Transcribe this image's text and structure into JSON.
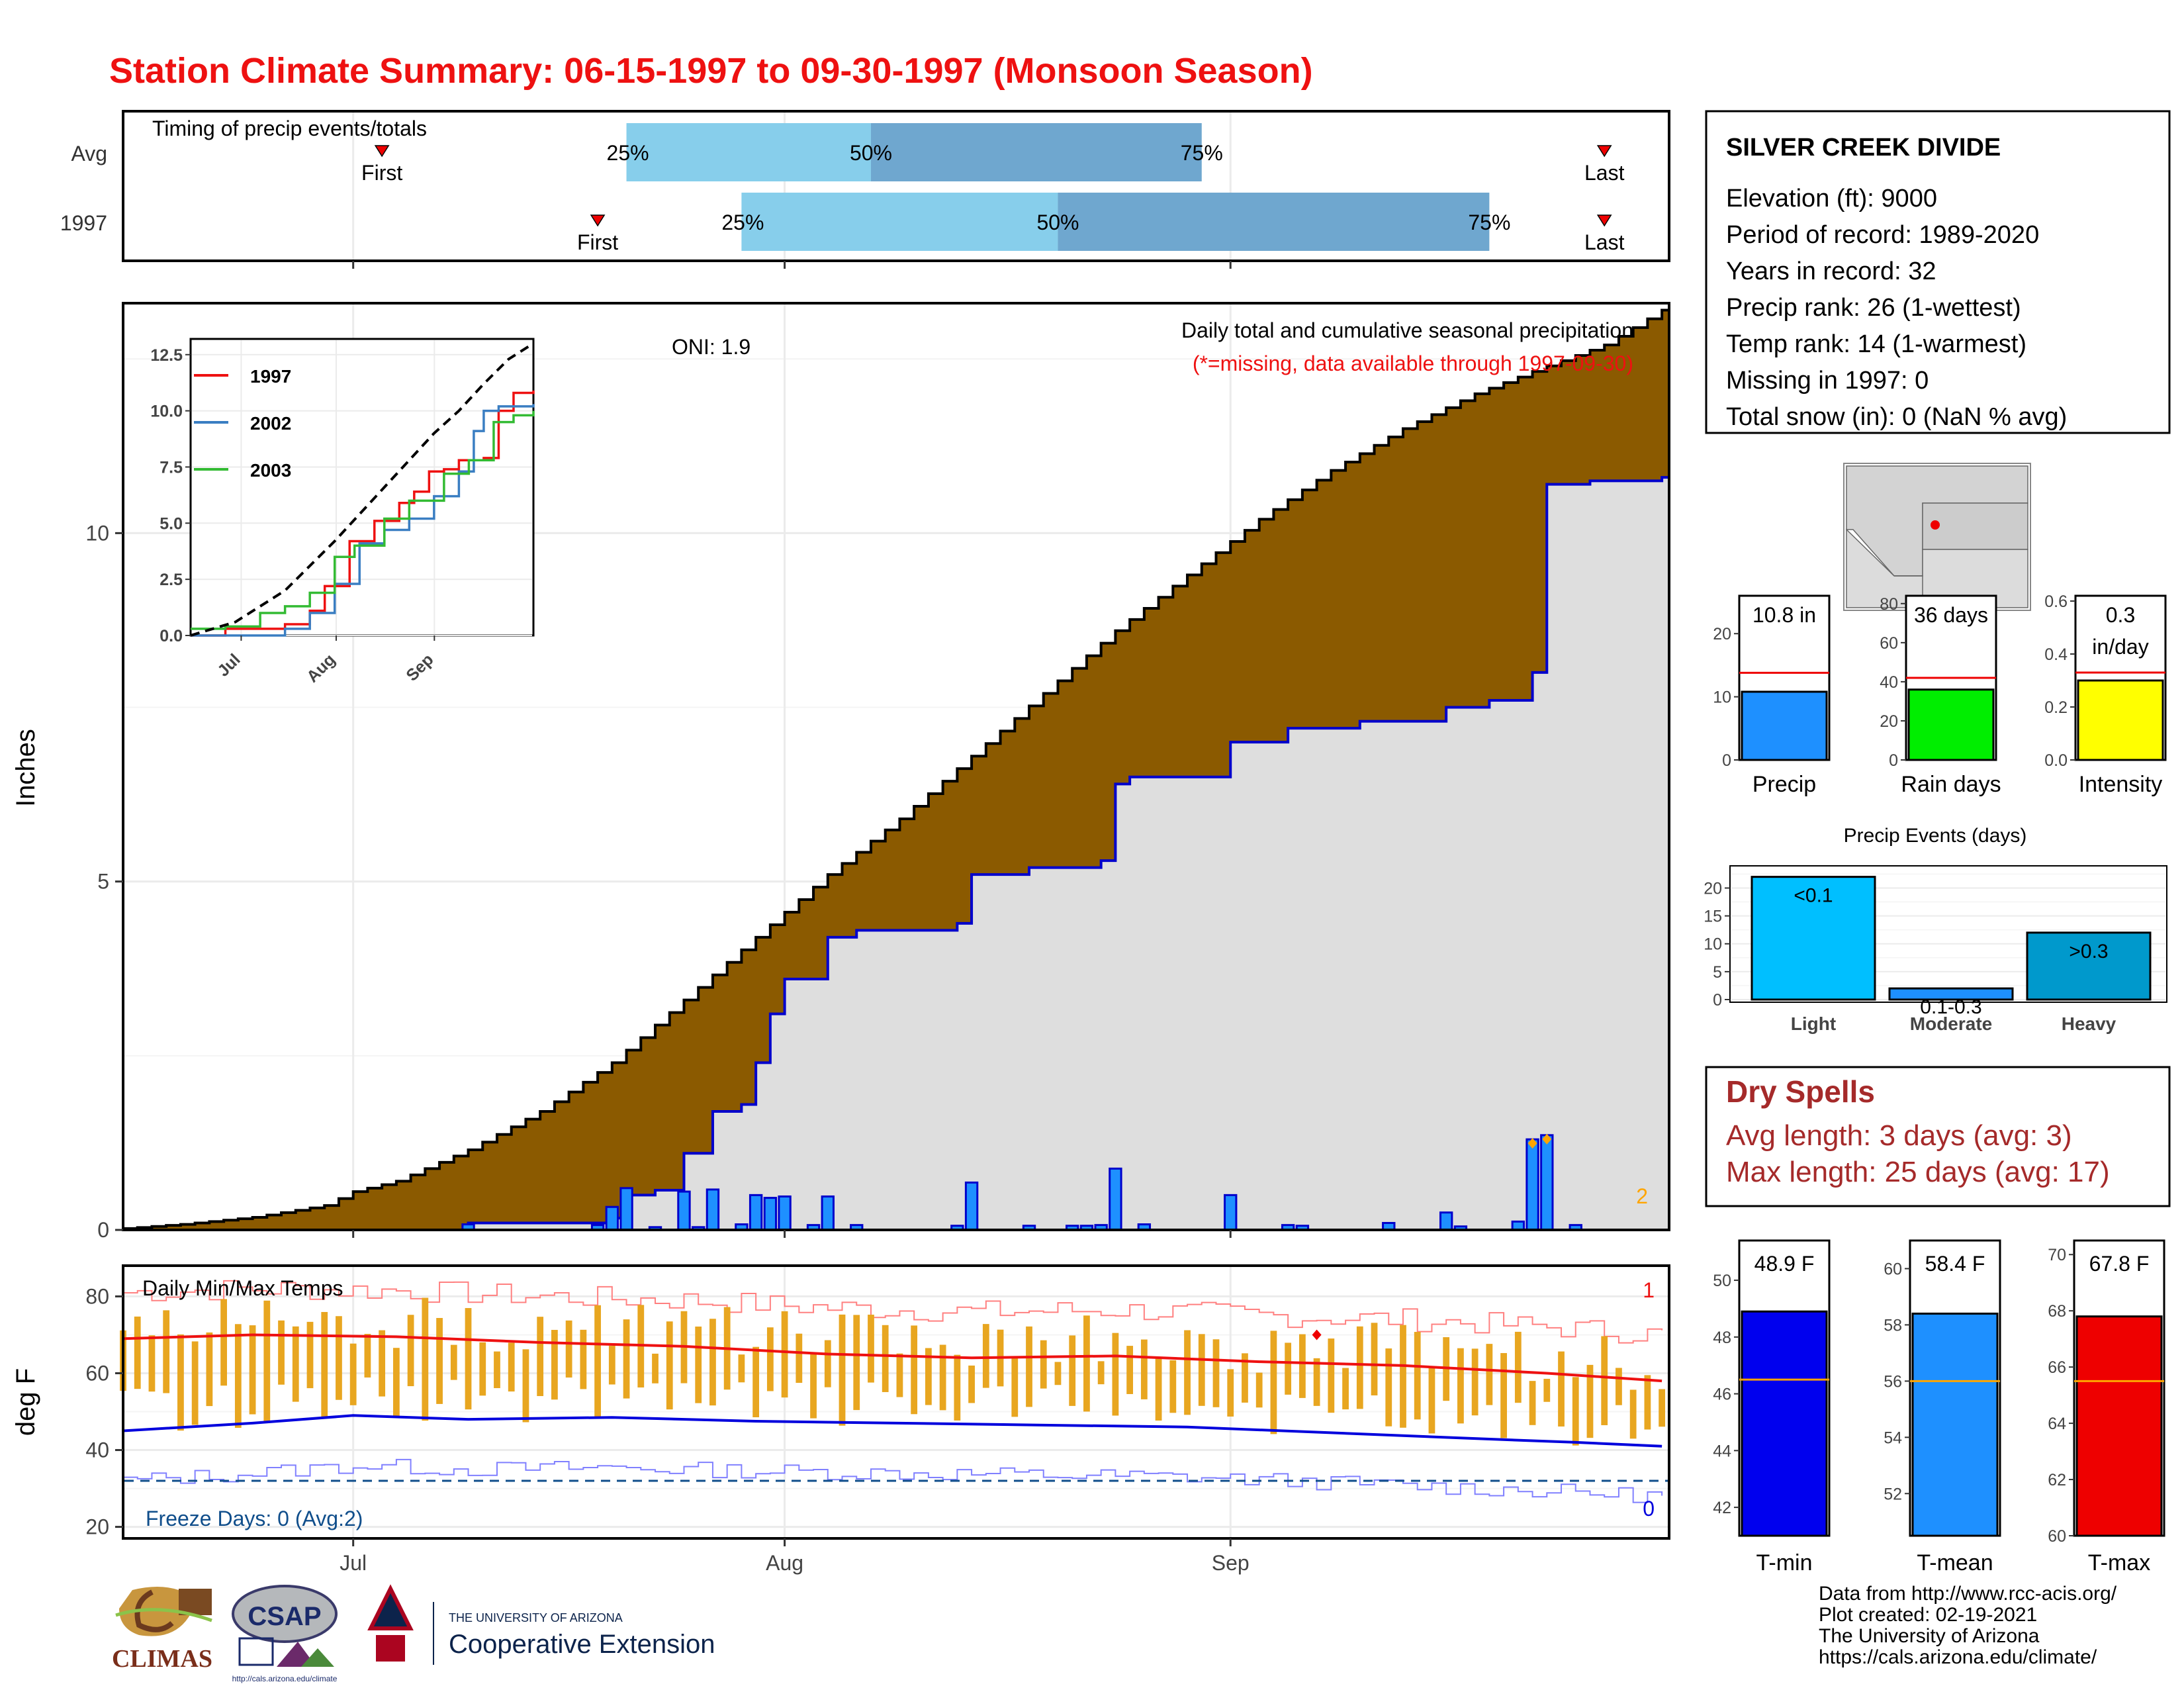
{
  "title": "Station Climate Summary: 06-15-1997 to 09-30-1997 (Monsoon Season)",
  "colors": {
    "title": "#ee1111",
    "cumulative_1997": "#8b5a00",
    "cumulative_avg_fill": "#dedede",
    "precip_bar": "#1e90ff",
    "precip_outline": "#0000cc",
    "temp_bar": "#e8a620",
    "avg_max": "#ee1111",
    "avg_min": "#0000dd",
    "timing_light": "#87ceeb",
    "timing_dark": "#6fa7cf",
    "dry_spell": "#a52a2a",
    "freeze_line": "#104e8b",
    "events_light": "#00bfff",
    "events_moderate": "#1e90ff",
    "events_heavy": "#0099cc",
    "rain_days_bar": "#00ee00",
    "intensity_bar": "#ffff00",
    "tmin_bar": "#0000ee",
    "tmean_bar": "#1e90ff",
    "tmax_bar": "#ee0000"
  },
  "timing": {
    "label": "Timing of precip events/totals",
    "rows": [
      {
        "name": "Avg",
        "first": "First",
        "last": "Last",
        "first_day": 19,
        "last_day": 104,
        "p25": 36,
        "p50": 53,
        "p75": 76,
        "p25_label": "25%",
        "p50_label": "50%",
        "p75_label": "75%"
      },
      {
        "name": "1997",
        "first": "First",
        "last": "Last",
        "first_day": 34,
        "last_day": 104,
        "p25": 44,
        "p50": 66,
        "p75": 96,
        "p25_label": "25%",
        "p50_label": "50%",
        "p75_label": "75%"
      }
    ]
  },
  "main": {
    "ylabel": "Inches",
    "oni": "ONI: 1.9",
    "subtitle": "Daily total and cumulative seasonal precipitation",
    "missing_note": "(*=missing, data available through 1997-09-30)",
    "missing_count": "2",
    "yticks": [
      "0",
      "5",
      "10"
    ],
    "xticks": [
      "Jul",
      "Aug",
      "Sep"
    ]
  },
  "chart_data": [
    {
      "type": "area",
      "name": "cumulative_precip",
      "x_unit": "day of season (1 = Jun 15)",
      "ylim": [
        0,
        13.3
      ],
      "avg_cumulative": [
        [
          1,
          0.02
        ],
        [
          5,
          0.08
        ],
        [
          10,
          0.18
        ],
        [
          15,
          0.35
        ],
        [
          17,
          0.55
        ],
        [
          20,
          0.7
        ],
        [
          25,
          1.15
        ],
        [
          30,
          1.7
        ],
        [
          35,
          2.4
        ],
        [
          40,
          3.3
        ],
        [
          45,
          4.2
        ],
        [
          50,
          5.1
        ],
        [
          55,
          5.9
        ],
        [
          60,
          6.8
        ],
        [
          65,
          7.7
        ],
        [
          70,
          8.6
        ],
        [
          75,
          9.4
        ],
        [
          80,
          10.2
        ],
        [
          85,
          10.9
        ],
        [
          90,
          11.5
        ],
        [
          95,
          12.0
        ],
        [
          100,
          12.4
        ],
        [
          104,
          12.7
        ],
        [
          108,
          13.2
        ]
      ],
      "obs_cumulative_1997": [
        [
          1,
          0
        ],
        [
          25,
          0.1
        ],
        [
          34,
          0.1
        ],
        [
          35,
          0.17
        ],
        [
          36,
          0.5
        ],
        [
          38,
          0.57
        ],
        [
          40,
          1.1
        ],
        [
          41,
          1.1
        ],
        [
          42,
          1.7
        ],
        [
          44,
          1.8
        ],
        [
          45,
          2.4
        ],
        [
          46,
          3.1
        ],
        [
          47,
          3.6
        ],
        [
          49,
          3.6
        ],
        [
          50,
          4.2
        ],
        [
          52,
          4.3
        ],
        [
          59,
          4.4
        ],
        [
          60,
          5.1
        ],
        [
          63,
          5.1
        ],
        [
          64,
          5.2
        ],
        [
          69,
          5.3
        ],
        [
          70,
          6.4
        ],
        [
          71,
          6.5
        ],
        [
          77,
          6.5
        ],
        [
          78,
          7.0
        ],
        [
          82,
          7.2
        ],
        [
          87,
          7.3
        ],
        [
          92,
          7.3
        ],
        [
          93,
          7.5
        ],
        [
          96,
          7.6
        ],
        [
          98,
          7.6
        ],
        [
          99,
          8.0
        ],
        [
          100,
          10.7
        ],
        [
          103,
          10.75
        ],
        [
          108,
          10.8
        ]
      ],
      "daily_precip_1997": [
        [
          25,
          0.08
        ],
        [
          34,
          0.07
        ],
        [
          35,
          0.33
        ],
        [
          36,
          0.6
        ],
        [
          38,
          0.04
        ],
        [
          40,
          0.55
        ],
        [
          41,
          0.04
        ],
        [
          42,
          0.58
        ],
        [
          44,
          0.08
        ],
        [
          45,
          0.5
        ],
        [
          46,
          0.46
        ],
        [
          47,
          0.48
        ],
        [
          49,
          0.07
        ],
        [
          50,
          0.48
        ],
        [
          52,
          0.07
        ],
        [
          59,
          0.06
        ],
        [
          60,
          0.68
        ],
        [
          64,
          0.06
        ],
        [
          67,
          0.06
        ],
        [
          68,
          0.06
        ],
        [
          69,
          0.07
        ],
        [
          70,
          0.88
        ],
        [
          72,
          0.08
        ],
        [
          78,
          0.5
        ],
        [
          82,
          0.07
        ],
        [
          83,
          0.06
        ],
        [
          89,
          0.1
        ],
        [
          93,
          0.25
        ],
        [
          94,
          0.05
        ],
        [
          98,
          0.12
        ],
        [
          99,
          1.3
        ],
        [
          100,
          1.36
        ],
        [
          102,
          0.07
        ]
      ],
      "inset": {
        "yticks": [
          "0.0",
          "2.5",
          "5.0",
          "7.5",
          "10.0",
          "12.5"
        ],
        "xticks": [
          "Jul",
          "Aug",
          "Sep"
        ],
        "legend": [
          "1997",
          "2002",
          "2003"
        ],
        "series": [
          {
            "name": "1997",
            "color": "#ee1111",
            "points": [
              [
                1,
                0
              ],
              [
                8,
                0.3
              ],
              [
                15,
                0.3
              ],
              [
                20,
                0.5
              ],
              [
                25,
                1.1
              ],
              [
                28,
                2.2
              ],
              [
                33,
                4.2
              ],
              [
                38,
                5.1
              ],
              [
                43,
                5.9
              ],
              [
                46,
                6.4
              ],
              [
                49,
                7.3
              ],
              [
                52,
                7.4
              ],
              [
                55,
                7.8
              ],
              [
                60,
                7.9
              ],
              [
                63,
                10.0
              ],
              [
                66,
                10.8
              ],
              [
                70,
                10.9
              ]
            ]
          },
          {
            "name": "2002",
            "color": "#3a7ec2",
            "points": [
              [
                1,
                0
              ],
              [
                10,
                0
              ],
              [
                20,
                0.3
              ],
              [
                25,
                1.0
              ],
              [
                30,
                2.3
              ],
              [
                35,
                4.1
              ],
              [
                40,
                4.7
              ],
              [
                45,
                5.2
              ],
              [
                50,
                6.2
              ],
              [
                55,
                7.3
              ],
              [
                58,
                9.1
              ],
              [
                60,
                10.0
              ],
              [
                63,
                10.2
              ],
              [
                70,
                10.3
              ]
            ]
          },
          {
            "name": "2003",
            "color": "#33bb33",
            "points": [
              [
                1,
                0.3
              ],
              [
                8,
                0.4
              ],
              [
                15,
                1.0
              ],
              [
                20,
                1.3
              ],
              [
                25,
                1.9
              ],
              [
                30,
                3.5
              ],
              [
                34,
                4.0
              ],
              [
                40,
                5.2
              ],
              [
                45,
                6.0
              ],
              [
                52,
                7.2
              ],
              [
                57,
                7.8
              ],
              [
                62,
                9.5
              ],
              [
                66,
                9.8
              ],
              [
                70,
                10.0
              ]
            ]
          },
          {
            "name": "avg",
            "color": "#000000",
            "dashed": true,
            "points": [
              [
                1,
                0
              ],
              [
                10,
                0.6
              ],
              [
                20,
                2.0
              ],
              [
                30,
                4.2
              ],
              [
                40,
                6.6
              ],
              [
                50,
                9.0
              ],
              [
                55,
                10.0
              ],
              [
                60,
                11.2
              ],
              [
                65,
                12.3
              ],
              [
                70,
                13.0
              ]
            ]
          }
        ]
      }
    },
    {
      "type": "line",
      "name": "daily_temperatures",
      "ylabel": "deg F",
      "yticks": [
        "20",
        "40",
        "60",
        "80"
      ],
      "ylim": [
        17,
        88
      ],
      "label": "Daily Min/Max Temps",
      "freeze_label": "Freeze Days: 0 (Avg:2)",
      "max_missing": "1",
      "min_missing": "0",
      "freeze_temp": 32,
      "avg_max": [
        [
          1,
          69
        ],
        [
          10,
          70
        ],
        [
          20,
          69.5
        ],
        [
          30,
          68
        ],
        [
          40,
          67
        ],
        [
          50,
          65
        ],
        [
          60,
          64
        ],
        [
          70,
          64.5
        ],
        [
          80,
          63
        ],
        [
          90,
          62
        ],
        [
          100,
          60
        ],
        [
          108,
          58
        ]
      ],
      "avg_min": [
        [
          1,
          45
        ],
        [
          10,
          47
        ],
        [
          17,
          49
        ],
        [
          25,
          48
        ],
        [
          35,
          48.5
        ],
        [
          45,
          47.5
        ],
        [
          55,
          47
        ],
        [
          65,
          46.5
        ],
        [
          75,
          46
        ],
        [
          85,
          44.5
        ],
        [
          95,
          43
        ],
        [
          102,
          42
        ],
        [
          108,
          41
        ]
      ]
    }
  ],
  "station": {
    "name": "SILVER CREEK DIVIDE",
    "lines": [
      "Elevation (ft): 9000",
      "Period of record: 1989-2020",
      "Years in record: 32",
      "Precip rank: 26 (1-wettest)",
      "Temp rank: 14 (1-warmest)",
      "Missing in 1997: 0",
      "Total snow (in): 0 (NaN % avg)"
    ]
  },
  "summary_bars": [
    {
      "label": "Precip",
      "value_label": "10.8 in",
      "value": 10.8,
      "avg": 13.8,
      "ymax": 26,
      "yticks": [
        "0",
        "10",
        "20"
      ],
      "tick_vals": [
        0,
        10,
        20
      ],
      "color": "#1e90ff"
    },
    {
      "label": "Rain days",
      "value_label": "36 days",
      "value": 36,
      "avg": 42,
      "ymax": 84,
      "yticks": [
        "0",
        "20",
        "40",
        "60",
        "80"
      ],
      "tick_vals": [
        0,
        20,
        40,
        60,
        80
      ],
      "color": "#00ee00"
    },
    {
      "label": "Intensity",
      "value_label": "0.3",
      "value_label2": "in/day",
      "value": 0.3,
      "avg": 0.33,
      "ymax": 0.62,
      "yticks": [
        "0.0",
        "0.2",
        "0.4",
        "0.6"
      ],
      "tick_vals": [
        0,
        0.2,
        0.4,
        0.6
      ],
      "color": "#ffff00"
    }
  ],
  "events": {
    "title": "Precip Events (days)",
    "yticks": [
      "0",
      "5",
      "10",
      "15",
      "20"
    ],
    "bars": [
      {
        "label": "Light",
        "value": 22,
        "value_label": "<0.1",
        "color": "#00bfff"
      },
      {
        "label": "Moderate",
        "value": 2,
        "value_label": "0.1-0.3",
        "color": "#1e90ff"
      },
      {
        "label": "Heavy",
        "value": 12,
        "value_label": ">0.3",
        "color": "#0099cc"
      }
    ]
  },
  "dry_spells": {
    "title": "Dry Spells",
    "avg_line": "Avg length: 3 days (avg: 3)",
    "max_line": "Max length: 25 days (avg: 17)"
  },
  "temp_bars": [
    {
      "label": "T-min",
      "value_label": "48.9 F",
      "value": 48.9,
      "avg": 46.5,
      "ylim": [
        41,
        51.4
      ],
      "yticks": [
        "42",
        "44",
        "46",
        "48",
        "50"
      ],
      "tick_vals": [
        42,
        44,
        46,
        48,
        50
      ],
      "color": "#0000ee"
    },
    {
      "label": "T-mean",
      "value_label": "58.4 F",
      "value": 58.4,
      "avg": 56,
      "ylim": [
        50.5,
        61
      ],
      "yticks": [
        "52",
        "54",
        "56",
        "58",
        "60"
      ],
      "tick_vals": [
        52,
        54,
        56,
        58,
        60
      ],
      "color": "#1e90ff"
    },
    {
      "label": "T-max",
      "value_label": "67.8 F",
      "value": 67.8,
      "avg": 65.5,
      "ylim": [
        60,
        70.5
      ],
      "yticks": [
        "60",
        "62",
        "64",
        "66",
        "68",
        "70"
      ],
      "tick_vals": [
        60,
        62,
        64,
        66,
        68,
        70
      ],
      "color": "#ee0000"
    }
  ],
  "footer": {
    "lines": [
      "Data from http://www.rcc-acis.org/",
      "Plot created: 02-19-2021",
      "The University of Arizona",
      "https://cals.arizona.edu/climate/"
    ],
    "logo_climas": "CLIMAS",
    "logo_csap": "CSAP",
    "logo_csap_url": "http://cals.arizona.edu/climate",
    "logo_ua_small": "THE UNIVERSITY OF ARIZONA",
    "logo_ua_big": "Cooperative Extension"
  }
}
